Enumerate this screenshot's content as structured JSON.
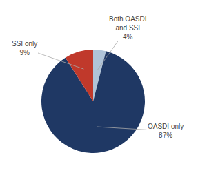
{
  "chart_data": {
    "type": "pie",
    "categories": [
      "Both OASDI\nand SSI",
      "OASDI only",
      "SSI only"
    ],
    "values": [
      4,
      87,
      9
    ],
    "value_labels": [
      "4%",
      "87%",
      "9%"
    ],
    "colors": [
      "#b0c4d8",
      "#1f3864",
      "#c0392b"
    ],
    "data_labels": true
  }
}
